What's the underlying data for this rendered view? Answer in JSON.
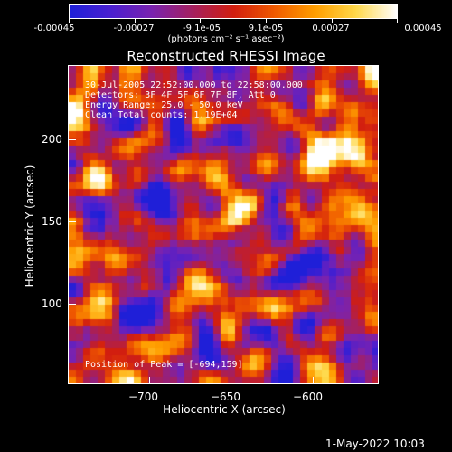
{
  "colorbar": {
    "ticks": [
      "-0.00045",
      "-0.00027",
      "-9.1e-05",
      "9.1e-05",
      "0.00027",
      "0.00045"
    ],
    "units": "(photons cm⁻² s⁻¹ asec⁻²)",
    "colors": [
      "#1f1fd8",
      "#4b1fd0",
      "#7a23b0",
      "#a52060",
      "#d21e10",
      "#f05a00",
      "#ff9e00",
      "#ffd94a",
      "#ffffff"
    ]
  },
  "chart_data": {
    "type": "heatmap",
    "title": "Reconstructed RHESSI Image",
    "xlabel": "Heliocentric X (arcsec)",
    "ylabel": "Heliocentric Y (arcsec)",
    "xlim": [
      -748,
      -650
    ],
    "ylim": [
      51,
      243
    ],
    "x_ticks": [
      "−700",
      "−650",
      "−600"
    ],
    "y_ticks": [
      "200",
      "150",
      "100"
    ],
    "value_range": [
      -0.00045,
      0.00045
    ],
    "peak": [
      -694,
      159
    ],
    "annotations": [
      "30-Jul-2005 22:52:00.000 to 22:58:00.000",
      "Detectors: 3F 4F 5F 6F 7F 8F, Att 0",
      "Energy Range: 25.0 - 50.0 keV",
      "Clean    Total counts: 1.19E+04"
    ],
    "peak_label": "Position of Peak = [-694,159]"
  },
  "footer": {
    "date": "1-May-2022 10:03"
  }
}
